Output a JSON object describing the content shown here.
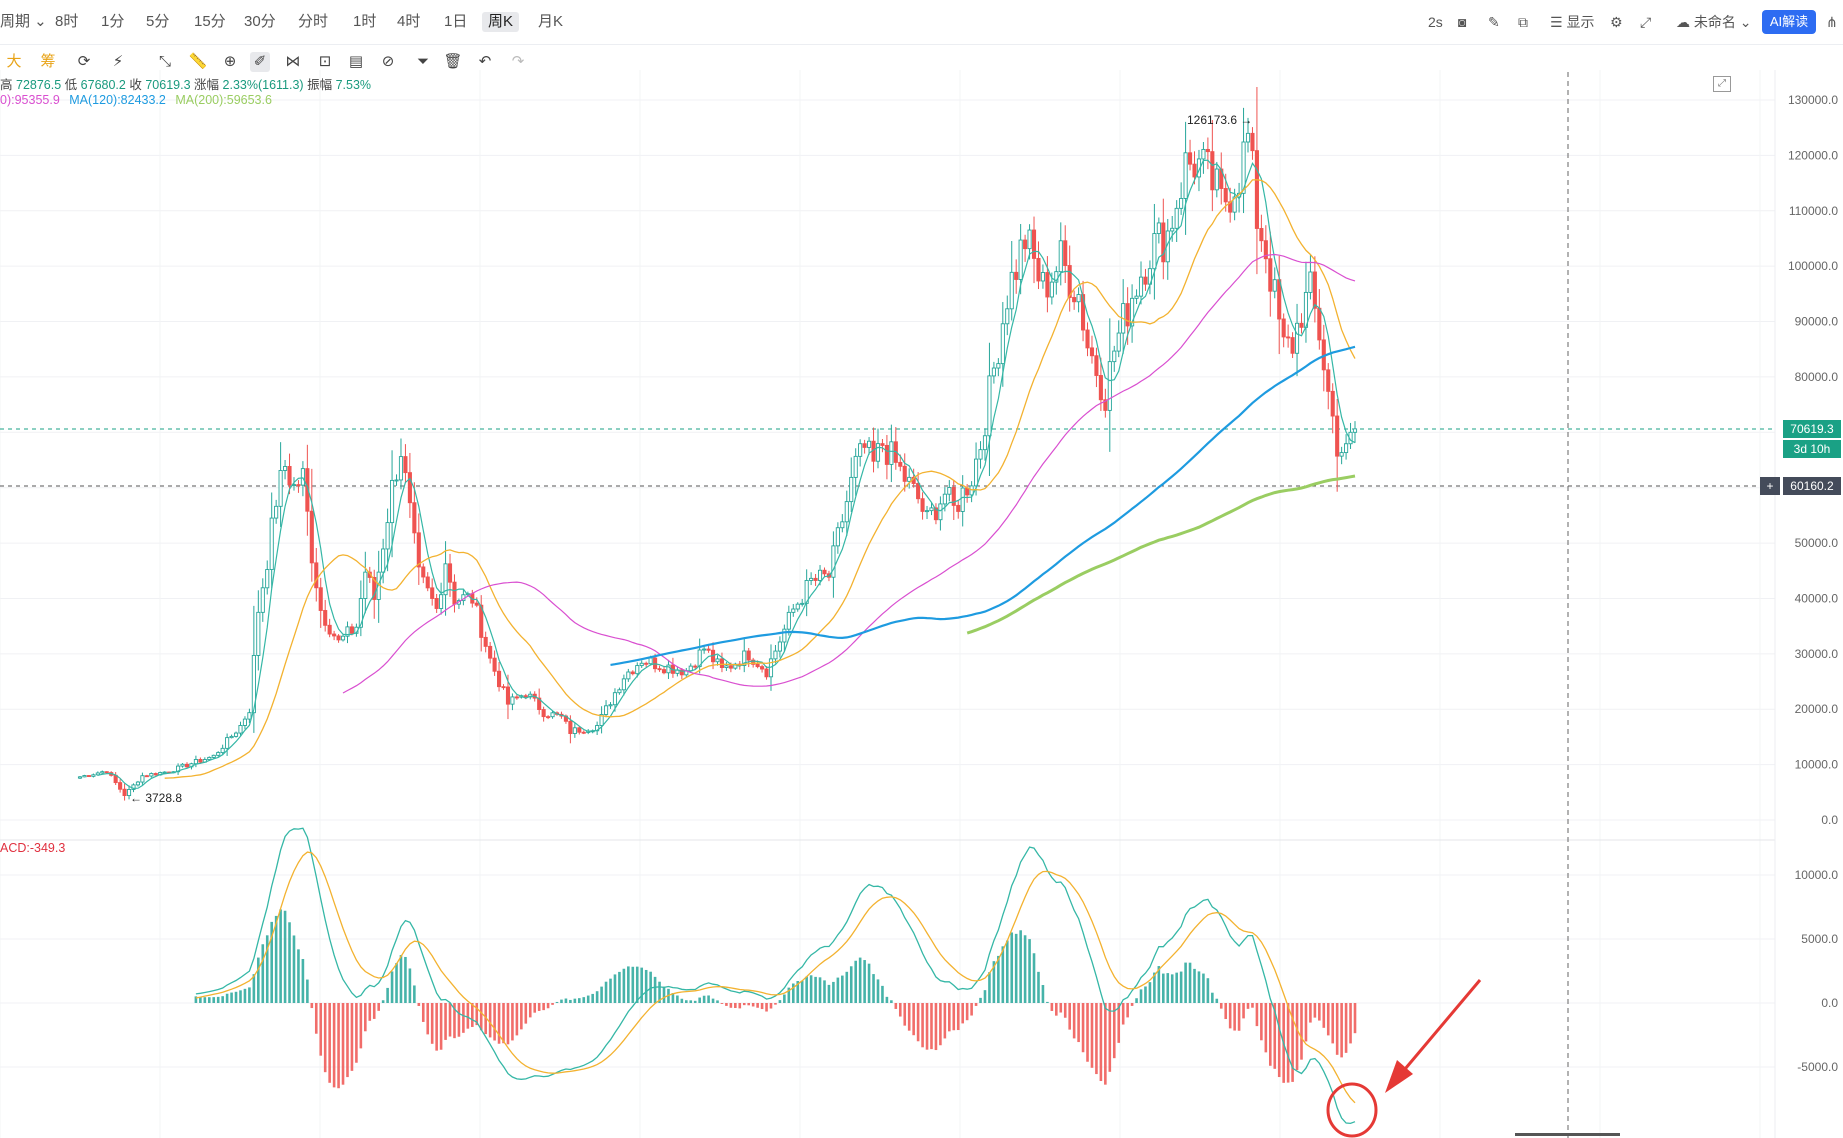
{
  "timeframes": [
    {
      "label": "周期 ⌄",
      "active": false
    },
    {
      "label": "8时",
      "active": false
    },
    {
      "label": "1分",
      "active": false
    },
    {
      "label": "5分",
      "active": false
    },
    {
      "label": "15分",
      "active": false
    },
    {
      "label": "30分",
      "active": false
    },
    {
      "label": "分时",
      "active": false
    },
    {
      "label": "1时",
      "active": false
    },
    {
      "label": "4时",
      "active": false
    },
    {
      "label": "1日",
      "active": false
    },
    {
      "label": "周K",
      "active": true
    },
    {
      "label": "月K",
      "active": false
    }
  ],
  "header_right": {
    "refresh": "2s",
    "display": "显示",
    "layout_name": "未命名",
    "ai_button": "AI解读"
  },
  "toolbar": {
    "icons": [
      "big-mode-icon",
      "chip-mode-icon",
      "refresh-icon",
      "indicator-icon",
      "trendline-icon",
      "ruler-icon",
      "magnet-icon",
      "brush-icon",
      "pattern-icon",
      "lock-icon",
      "template-icon",
      "link-icon",
      "filter-icon",
      "trash-icon",
      "undo-icon",
      "redo-icon"
    ],
    "big_label": "大",
    "chip_label": "筹"
  },
  "ohlc_info": {
    "high_label": "高",
    "high": "72876.5",
    "low_label": "低",
    "low": "67680.2",
    "close_label": "收",
    "close": "70619.3",
    "change_label": "涨幅",
    "change": "2.33%(1611.3)",
    "amplitude_label": "振幅",
    "amplitude": "7.53%"
  },
  "ma_info": [
    {
      "label": "0):95355.9",
      "color": "#d94fd0"
    },
    {
      "label": "MA(120):82433.2",
      "color": "#1e9be0"
    },
    {
      "label": "MA(200):59653.6",
      "color": "#9acd62"
    }
  ],
  "macd_info": "ACD:-349.3",
  "price_axis": [
    "130000.0",
    "120000.0",
    "110000.0",
    "100000.0",
    "90000.0",
    "80000.0",
    "70000.0",
    "60000.0",
    "50000.0",
    "40000.0",
    "30000.0",
    "20000.0",
    "10000.0",
    "0.0"
  ],
  "macd_axis": [
    "10000.0",
    "5000.0",
    "0.0",
    "-5000.0"
  ],
  "current_price": "70619.3",
  "countdown": "3d 10h",
  "crosshair_price": "60160.2",
  "high_marker": "126173.6",
  "low_marker": "3728.8",
  "colors": {
    "up": "#26a69a",
    "down": "#ef5350",
    "ma_yellow": "#f3b230",
    "ma_pink": "#d94fd0",
    "ma_blue": "#1e9be0",
    "ma_green": "#9acd62",
    "annotation": "#e53935"
  },
  "chart_data": {
    "type": "candlestick",
    "price_range": [
      0,
      130000
    ],
    "price_points": [
      [
        0,
        7800
      ],
      [
        6,
        8900
      ],
      [
        10,
        4500
      ],
      [
        14,
        8000
      ],
      [
        20,
        8800
      ],
      [
        26,
        10500
      ],
      [
        30,
        11500
      ],
      [
        36,
        17000
      ],
      [
        38,
        20000
      ],
      [
        40,
        38000
      ],
      [
        42,
        47000
      ],
      [
        44,
        58000
      ],
      [
        46,
        64000
      ],
      [
        48,
        60000
      ],
      [
        50,
        62000
      ],
      [
        52,
        48000
      ],
      [
        54,
        38000
      ],
      [
        58,
        32000
      ],
      [
        62,
        35000
      ],
      [
        64,
        45000
      ],
      [
        66,
        40000
      ],
      [
        70,
        60000
      ],
      [
        72,
        67000
      ],
      [
        76,
        44000
      ],
      [
        80,
        38000
      ],
      [
        82,
        47000
      ],
      [
        84,
        40000
      ],
      [
        88,
        40000
      ],
      [
        92,
        29000
      ],
      [
        96,
        21000
      ],
      [
        100,
        23000
      ],
      [
        104,
        19500
      ],
      [
        108,
        18500
      ],
      [
        110,
        16000
      ],
      [
        116,
        17000
      ],
      [
        122,
        26000
      ],
      [
        126,
        29000
      ],
      [
        130,
        28000
      ],
      [
        136,
        27000
      ],
      [
        140,
        31000
      ],
      [
        144,
        27000
      ],
      [
        150,
        30000
      ],
      [
        154,
        27000
      ],
      [
        160,
        38000
      ],
      [
        164,
        43000
      ],
      [
        168,
        44000
      ],
      [
        170,
        51000
      ],
      [
        174,
        64000
      ],
      [
        176,
        67000
      ],
      [
        178,
        64000
      ],
      [
        180,
        68000
      ],
      [
        184,
        63000
      ],
      [
        188,
        58000
      ],
      [
        190,
        54000
      ],
      [
        194,
        59000
      ],
      [
        196,
        56000
      ],
      [
        200,
        62000
      ],
      [
        202,
        68000
      ],
      [
        204,
        77000
      ],
      [
        208,
        95000
      ],
      [
        212,
        105000
      ],
      [
        216,
        96000
      ],
      [
        220,
        101000
      ],
      [
        224,
        95000
      ],
      [
        226,
        86000
      ],
      [
        230,
        77000
      ],
      [
        232,
        85000
      ],
      [
        236,
        95000
      ],
      [
        240,
        103000
      ],
      [
        244,
        106000
      ],
      [
        248,
        118000
      ],
      [
        250,
        119000
      ],
      [
        254,
        115000
      ],
      [
        256,
        111000
      ],
      [
        260,
        117000
      ],
      [
        262,
        123000
      ],
      [
        264,
        109000
      ],
      [
        266,
        103000
      ],
      [
        270,
        85000
      ],
      [
        272,
        86000
      ],
      [
        274,
        92000
      ],
      [
        276,
        95000
      ],
      [
        278,
        88000
      ],
      [
        280,
        77000
      ],
      [
        282,
        68000
      ],
      [
        284,
        66000
      ],
      [
        286,
        71000
      ]
    ],
    "macd_range": [
      -10000,
      11000
    ],
    "annotation": "arrow pointing at MACD crossover"
  }
}
